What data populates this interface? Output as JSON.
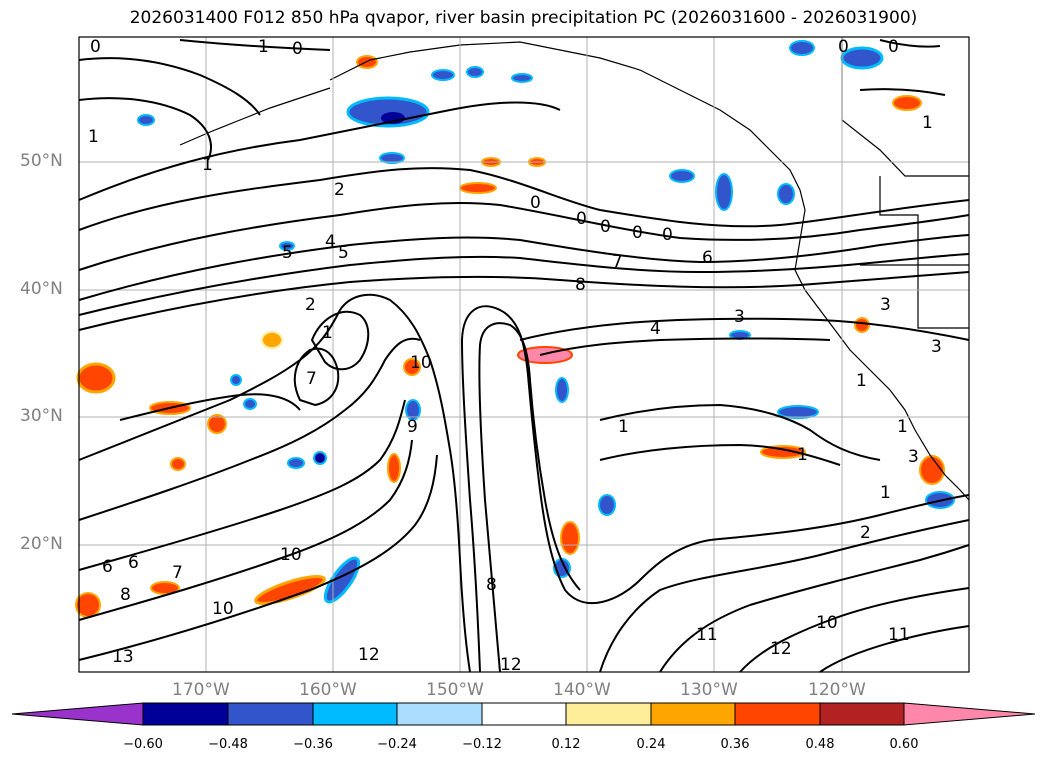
{
  "title": "2026031400 F012 850 hPa qvapor, river basin precipitation PC (2026031600 - 2026031900)",
  "latitude_labels": [
    "50°N",
    "40°N",
    "30°N",
    "20°N"
  ],
  "longitude_labels": [
    "170°W",
    "160°W",
    "150°W",
    "140°W",
    "130°W",
    "120°W"
  ],
  "contour_labels": [
    "0",
    "1",
    "0",
    "1",
    "0",
    "0",
    "1",
    "1",
    "2",
    "4",
    "5",
    "5",
    "0",
    "0",
    "0",
    "0",
    "0",
    "7",
    "6",
    "8",
    "4",
    "3",
    "2",
    "1",
    "10",
    "3",
    "9",
    "7",
    "1",
    "3",
    "1",
    "1",
    "1",
    "2",
    "1",
    "10",
    "6",
    "7",
    "6",
    "8",
    "10",
    "13",
    "12",
    "12",
    "8",
    "11",
    "12",
    "10",
    "11",
    "3"
  ],
  "colorbar": {
    "ticks": [
      "−0.60",
      "−0.48",
      "−0.36",
      "−0.24",
      "−0.12",
      "0.12",
      "0.24",
      "0.36",
      "0.48",
      "0.60"
    ],
    "colors": [
      "#9933cc",
      "#000099",
      "#3355cc",
      "#00bbff",
      "#aaddff",
      "#ffffff",
      "#ffee99",
      "#ffa500",
      "#ff4500",
      "#b22222",
      "#ff88aa"
    ]
  }
}
